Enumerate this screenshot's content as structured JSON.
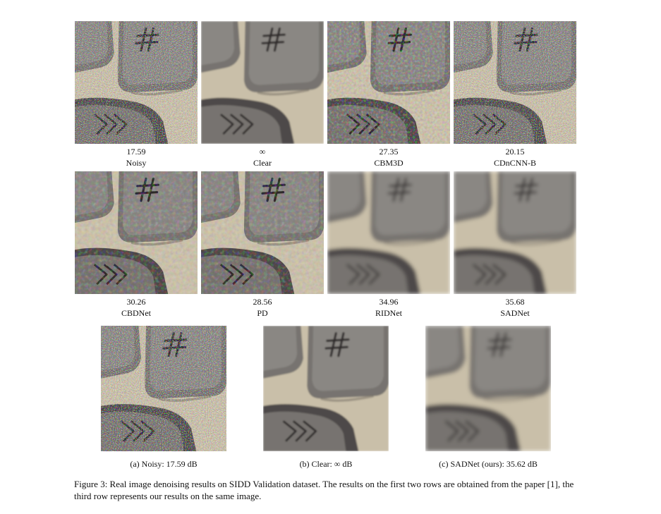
{
  "grid": [
    {
      "value": "17.59",
      "label": "Noisy",
      "style": "noisy"
    },
    {
      "value": "∞",
      "label": "Clear",
      "style": "clear"
    },
    {
      "value": "27.35",
      "label": "CBM3D",
      "style": "medium"
    },
    {
      "value": "20.15",
      "label": "CDnCNN-B",
      "style": "noisy"
    },
    {
      "value": "30.26",
      "label": "CBDNet",
      "style": "light"
    },
    {
      "value": "28.56",
      "label": "PD",
      "style": "light"
    },
    {
      "value": "34.96",
      "label": "RIDNet",
      "style": "smooth"
    },
    {
      "value": "35.68",
      "label": "SADNet",
      "style": "smooth"
    }
  ],
  "bottom": [
    {
      "caption": "(a) Noisy:  17.59 dB",
      "style": "noisy"
    },
    {
      "caption": "(b) Clear: ∞ dB",
      "style": "clear"
    },
    {
      "caption": "(c) SADNet (ours):  35.62 dB",
      "style": "smooth"
    }
  ],
  "figure_caption": "Figure 3: Real image denoising results on SIDD Validation dataset. The results on the first two rows are obtained from the paper [1], the third row represents our results on the same image.",
  "colors": {
    "background": "#c9bfa9",
    "key": "#77736f",
    "key_top": "#8a8783",
    "dark_key": "#4d4a48",
    "glyph": "#2e2a2a"
  }
}
